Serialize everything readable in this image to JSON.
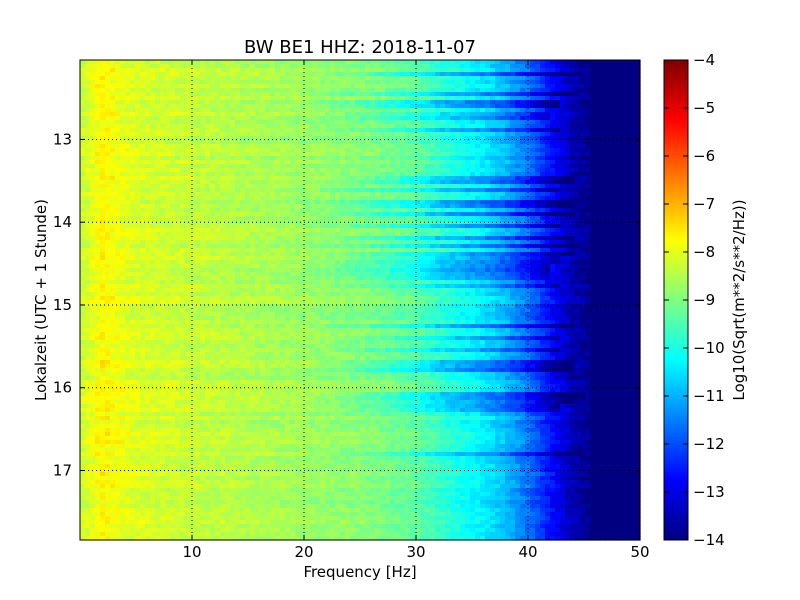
{
  "chart_data": {
    "type": "heatmap",
    "title": "BW BE1 HHZ: 2018-11-07",
    "xlabel": "Frequency [Hz]",
    "ylabel": "Lokalzeit (UTC + 1 Stunde)",
    "xlim": [
      0,
      50
    ],
    "ylim": [
      12.04,
      17.84
    ],
    "y_inverted": true,
    "grid": true,
    "x_ticks": [
      10,
      20,
      30,
      40,
      50
    ],
    "y_ticks": [
      13,
      14,
      15,
      16,
      17
    ],
    "colorbar": {
      "label": "Log10(Sqrt(m**2/s**2/Hz))",
      "range": [
        -14,
        -4
      ],
      "ticks": [
        -4,
        -5,
        -6,
        -7,
        -8,
        -9,
        -10,
        -11,
        -12,
        -13,
        -14
      ],
      "colormap": "jet"
    },
    "spectral_profile": {
      "frequency_hz": [
        0,
        2,
        5,
        10,
        15,
        20,
        25,
        30,
        33,
        36,
        38,
        40,
        42,
        44,
        46,
        50
      ],
      "log10_amplitude": [
        -8.3,
        -7.7,
        -8.1,
        -8.3,
        -8.5,
        -8.7,
        -8.9,
        -9.3,
        -9.9,
        -10.4,
        -10.9,
        -11.6,
        -12.6,
        -13.5,
        -14,
        -14
      ]
    },
    "noise_bands": [
      {
        "time_h": 12.22,
        "extends_to_hz": 45,
        "delta": 1.2
      },
      {
        "time_h": 12.45,
        "extends_to_hz": 44,
        "delta": 1.0
      },
      {
        "time_h": 12.58,
        "extends_to_hz": 43,
        "delta": 1.1
      },
      {
        "time_h": 12.72,
        "extends_to_hz": 42,
        "delta": 0.8
      },
      {
        "time_h": 12.88,
        "extends_to_hz": 43,
        "delta": 1.0
      },
      {
        "time_h": 13.5,
        "extends_to_hz": 44,
        "delta": 1.0
      },
      {
        "time_h": 13.62,
        "extends_to_hz": 43,
        "delta": 0.9
      },
      {
        "time_h": 13.77,
        "extends_to_hz": 44,
        "delta": 1.1
      },
      {
        "time_h": 13.9,
        "extends_to_hz": 44,
        "delta": 1.3
      },
      {
        "time_h": 14.05,
        "extends_to_hz": 43,
        "delta": 1.0
      },
      {
        "time_h": 14.2,
        "extends_to_hz": 44,
        "delta": 1.1
      },
      {
        "time_h": 14.28,
        "extends_to_hz": 44,
        "delta": 0.9
      },
      {
        "time_h": 14.38,
        "extends_to_hz": 44,
        "delta": 1.0
      },
      {
        "time_h": 14.45,
        "extends_to_hz": 43,
        "delta": 0.9
      },
      {
        "time_h": 14.55,
        "extends_to_hz": 42,
        "delta": 1.0
      },
      {
        "time_h": 14.65,
        "extends_to_hz": 42,
        "delta": 0.8
      },
      {
        "time_h": 14.78,
        "extends_to_hz": 43,
        "delta": 0.9
      },
      {
        "time_h": 15.25,
        "extends_to_hz": 44,
        "delta": 1.0
      },
      {
        "time_h": 15.4,
        "extends_to_hz": 43,
        "delta": 0.9
      },
      {
        "time_h": 15.55,
        "extends_to_hz": 43,
        "delta": 0.8
      },
      {
        "time_h": 15.68,
        "extends_to_hz": 44,
        "delta": 1.2
      },
      {
        "time_h": 15.77,
        "extends_to_hz": 44,
        "delta": 1.1
      },
      {
        "time_h": 16.1,
        "extends_to_hz": 45,
        "delta": 1.1
      },
      {
        "time_h": 16.18,
        "extends_to_hz": 44,
        "delta": 0.9
      },
      {
        "time_h": 16.25,
        "extends_to_hz": 43,
        "delta": 1.0
      },
      {
        "time_h": 16.8,
        "extends_to_hz": 45,
        "delta": 1.0
      }
    ]
  }
}
